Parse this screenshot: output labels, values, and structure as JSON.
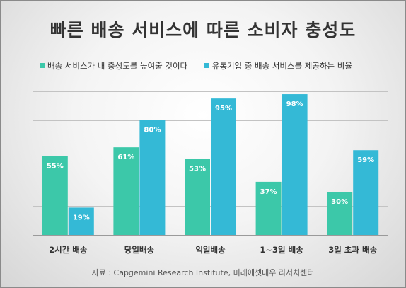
{
  "colors": {
    "series1": "#3cc8a9",
    "series2": "#34b9d6",
    "grid": "#c3c3c3",
    "text": "#333333"
  },
  "chart_data": {
    "type": "bar",
    "title": "빠른 배송 서비스에 따른 소비자 충성도",
    "categories": [
      "2시간 배송",
      "당일배송",
      "익일배송",
      "1~3일 배송",
      "3일 초과 배송"
    ],
    "series": [
      {
        "name": "배송 서비스가 내 충성도를 높여줄 것이다",
        "values": [
          55,
          61,
          53,
          37,
          30
        ],
        "labels": [
          "55%",
          "61%",
          "53%",
          "37%",
          "30%"
        ]
      },
      {
        "name": "유통기업 중 배송 서비스를 제공하는 비율",
        "values": [
          19,
          80,
          95,
          98,
          59
        ],
        "labels": [
          "19%",
          "80%",
          "95%",
          "98%",
          "59%"
        ]
      }
    ],
    "ylim": [
      0,
      100
    ],
    "grid": true,
    "legend": "top",
    "xlabel": "",
    "ylabel": ""
  },
  "source": "자료 : Capgemini Research Institute, 미래에셋대우 리서치센터"
}
